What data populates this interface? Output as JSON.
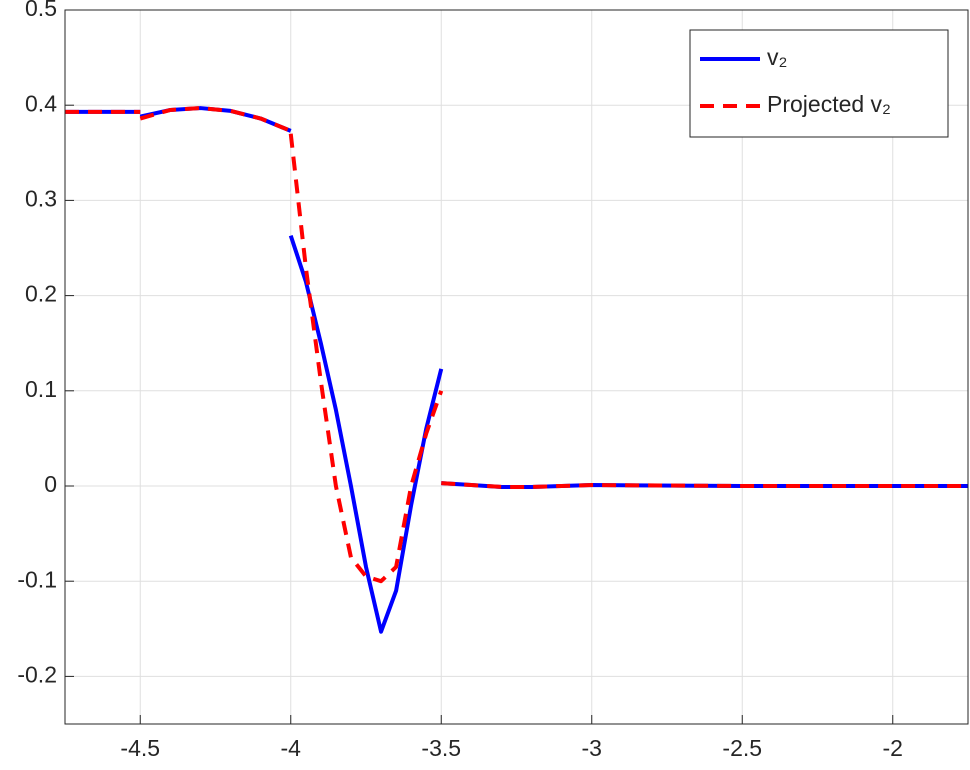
{
  "chart_data": {
    "type": "line",
    "x": [
      -4.75,
      -4.5,
      -4.5,
      -4.5,
      -4.4,
      -4.3,
      -4.2,
      -4.1,
      -4.0,
      -4.0,
      -4.0,
      -3.95,
      -3.9,
      -3.85,
      -3.8,
      -3.75,
      -3.7,
      -3.65,
      -3.6,
      -3.55,
      -3.5,
      -3.5,
      -3.5,
      -3.4,
      -3.3,
      -3.2,
      -3.1,
      -3.0,
      -2.5,
      -2.0,
      -1.75
    ],
    "series": [
      {
        "name": "v₂",
        "color": "#0000ff",
        "dash": false,
        "values": [
          0.393,
          0.393,
          null,
          0.388,
          0.395,
          0.397,
          0.394,
          0.386,
          0.373,
          null,
          0.263,
          0.215,
          0.15,
          0.08,
          0.0,
          -0.085,
          -0.153,
          -0.11,
          -0.02,
          0.06,
          0.123,
          null,
          0.003,
          0.001,
          -0.001,
          -0.001,
          0,
          0.001,
          0,
          0,
          0
        ]
      },
      {
        "name": "Projected v₂",
        "color": "#ff0000",
        "dash": true,
        "values": [
          0.393,
          0.393,
          null,
          0.386,
          0.395,
          0.397,
          0.394,
          0.386,
          0.373,
          null,
          0.37,
          0.23,
          0.11,
          0.0,
          -0.075,
          -0.095,
          -0.1,
          -0.085,
          0.0,
          0.055,
          0.1,
          null,
          0.003,
          0.001,
          -0.001,
          -0.001,
          0,
          0.001,
          0,
          0,
          0
        ]
      }
    ],
    "xlim": [
      -4.75,
      -1.75
    ],
    "xticks": [
      -4.5,
      -4,
      -3.5,
      -3,
      -2.5,
      -2
    ],
    "ylim": [
      -0.25,
      0.5
    ],
    "yticks": [
      -0.2,
      -0.1,
      0,
      0.1,
      0.2,
      0.3,
      0.4,
      0.5
    ],
    "grid": true,
    "legend": "top-right"
  }
}
